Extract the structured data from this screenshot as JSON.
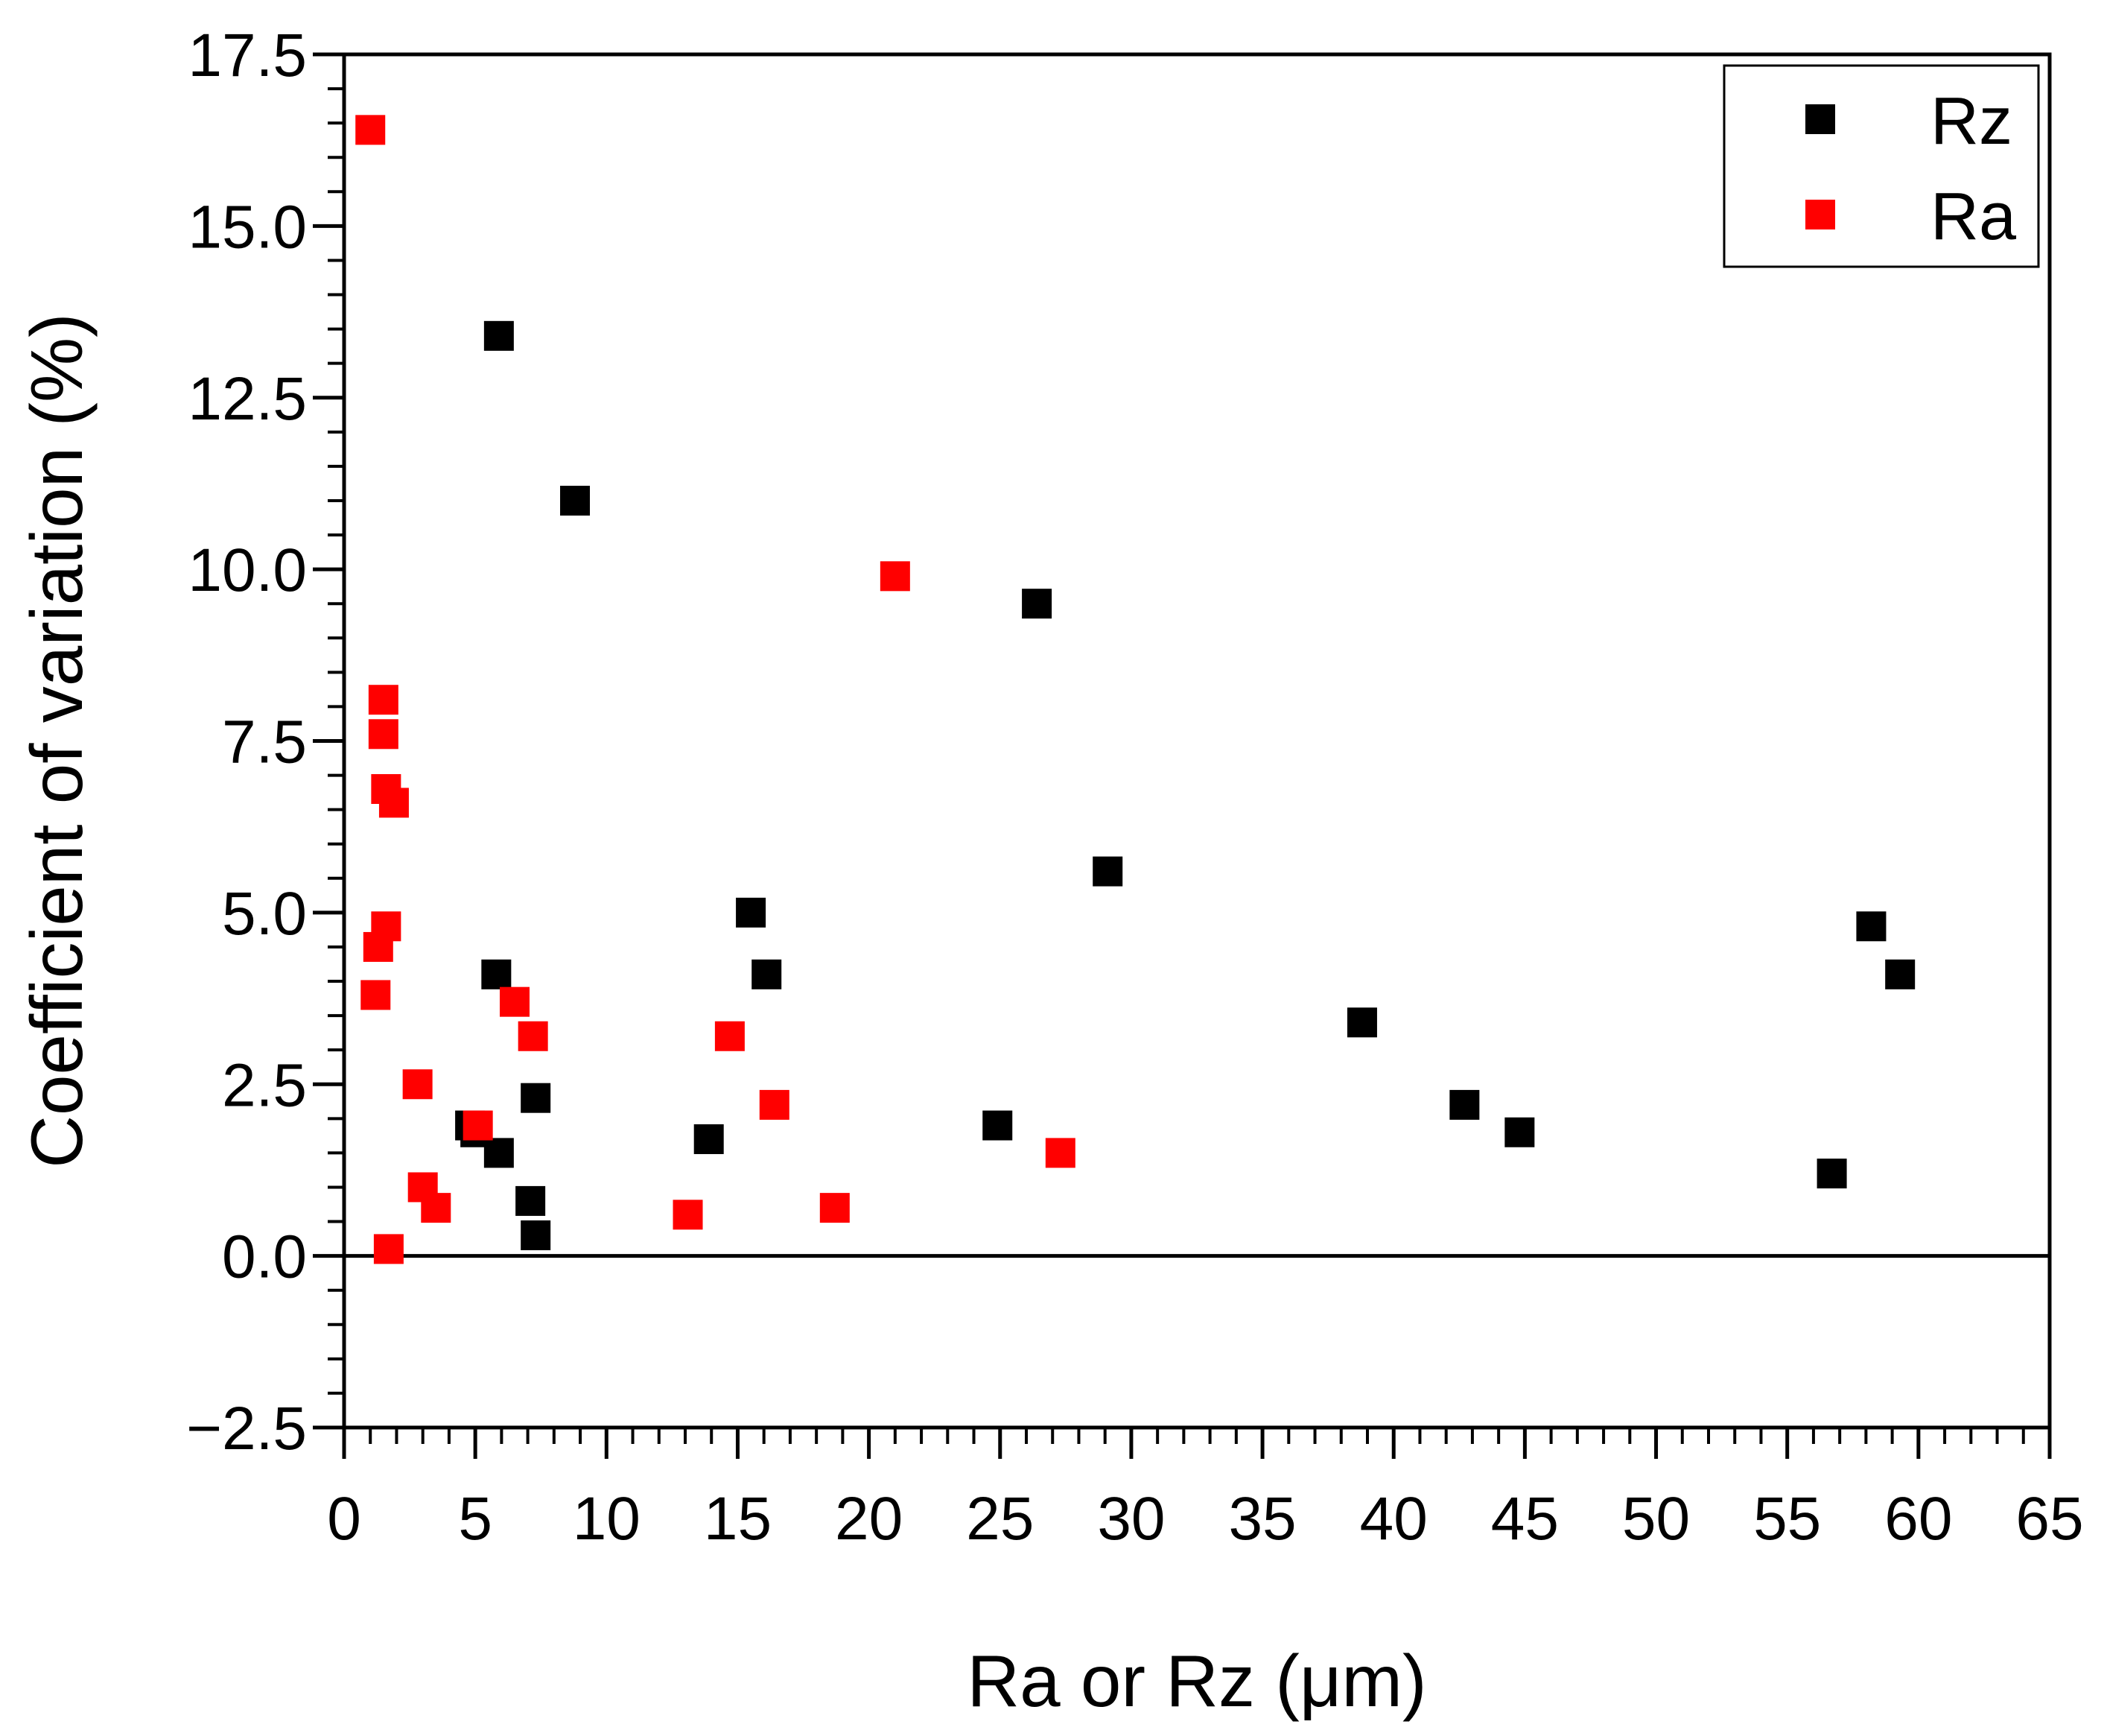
{
  "chart_data": {
    "type": "scatter",
    "xlabel": "Ra or Rz (μm)",
    "ylabel": "Coefficient of variation (%)",
    "xlim": [
      0,
      65
    ],
    "ylim": [
      -2.5,
      17.5
    ],
    "xticks": [
      0,
      5,
      10,
      15,
      20,
      25,
      30,
      35,
      40,
      45,
      50,
      55,
      60,
      65
    ],
    "yticks": [
      -2.5,
      0.0,
      2.5,
      5.0,
      7.5,
      10.0,
      12.5,
      15.0,
      17.5
    ],
    "xtick_labels": [
      "0",
      "5",
      "10",
      "15",
      "20",
      "25",
      "30",
      "35",
      "40",
      "45",
      "50",
      "55",
      "60",
      "65"
    ],
    "ytick_labels": [
      "−2.5",
      "0.0",
      "2.5",
      "5.0",
      "7.5",
      "10.0",
      "12.5",
      "15.0",
      "17.5"
    ],
    "zero_line": true,
    "grid": false,
    "legend_position": "top-right",
    "series": [
      {
        "name": "Rz",
        "color": "#000000",
        "marker": "square",
        "points": [
          [
            5.9,
            13.4
          ],
          [
            8.8,
            11.0
          ],
          [
            26.4,
            9.5
          ],
          [
            29.1,
            5.6
          ],
          [
            15.5,
            5.0
          ],
          [
            16.1,
            4.1
          ],
          [
            5.8,
            4.1
          ],
          [
            58.2,
            4.8
          ],
          [
            59.3,
            4.1
          ],
          [
            38.8,
            3.4
          ],
          [
            42.7,
            2.2
          ],
          [
            44.8,
            1.8
          ],
          [
            56.7,
            1.2
          ],
          [
            24.9,
            1.9
          ],
          [
            13.9,
            1.7
          ],
          [
            7.3,
            2.3
          ],
          [
            4.8,
            1.9
          ],
          [
            5.0,
            1.8
          ],
          [
            5.9,
            1.5
          ],
          [
            7.1,
            0.8
          ],
          [
            7.3,
            0.3
          ]
        ]
      },
      {
        "name": "Ra",
        "color": "#ff0000",
        "marker": "square",
        "points": [
          [
            1.0,
            16.4
          ],
          [
            21.0,
            9.9
          ],
          [
            1.5,
            8.1
          ],
          [
            1.5,
            7.6
          ],
          [
            1.6,
            6.8
          ],
          [
            1.9,
            6.6
          ],
          [
            1.6,
            4.8
          ],
          [
            1.3,
            4.5
          ],
          [
            1.2,
            3.8
          ],
          [
            6.5,
            3.7
          ],
          [
            7.2,
            3.2
          ],
          [
            14.7,
            3.2
          ],
          [
            2.8,
            2.5
          ],
          [
            16.4,
            2.2
          ],
          [
            5.1,
            1.9
          ],
          [
            27.3,
            1.5
          ],
          [
            3.0,
            1.0
          ],
          [
            3.5,
            0.7
          ],
          [
            18.7,
            0.7
          ],
          [
            13.1,
            0.6
          ],
          [
            1.7,
            0.1
          ]
        ]
      }
    ]
  }
}
